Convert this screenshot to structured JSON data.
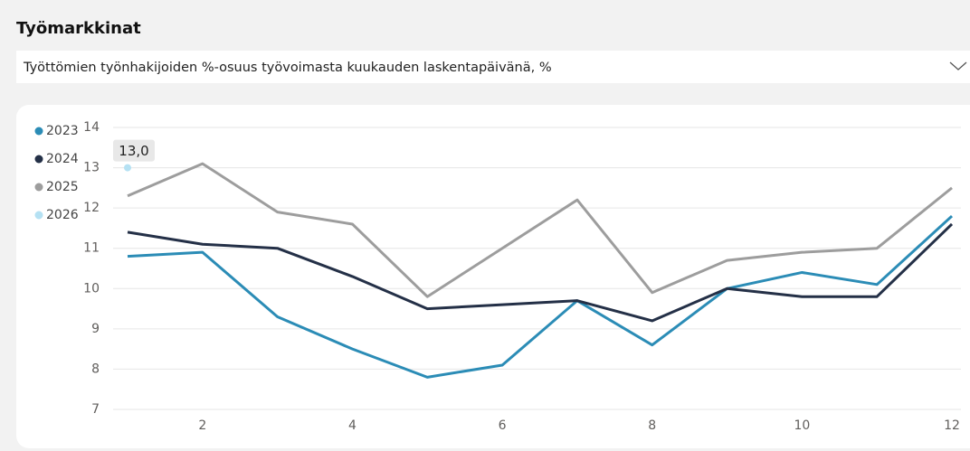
{
  "page": {
    "title": "Työmarkkinat",
    "dropdown": "Työttömien työnhakijoiden %-osuus työvoimasta kuukauden laskentapäivänä, %"
  },
  "chart_data": {
    "type": "line",
    "x": [
      1,
      2,
      3,
      4,
      5,
      6,
      7,
      8,
      9,
      10,
      11,
      12
    ],
    "series": [
      {
        "name": "2023",
        "color": "#2b8cb6",
        "values": [
          10.8,
          10.9,
          9.3,
          8.5,
          7.8,
          8.1,
          9.7,
          8.6,
          10.0,
          10.4,
          10.1,
          11.8
        ]
      },
      {
        "name": "2024",
        "color": "#243047",
        "values": [
          11.4,
          11.1,
          11.0,
          10.3,
          9.5,
          9.6,
          9.7,
          9.2,
          10.0,
          9.8,
          9.8,
          11.6
        ]
      },
      {
        "name": "2025",
        "color": "#9d9d9d",
        "values": [
          12.3,
          13.1,
          11.9,
          11.6,
          9.8,
          11.0,
          12.2,
          9.9,
          10.7,
          10.9,
          11.0,
          12.5
        ]
      },
      {
        "name": "2026",
        "color": "#b5e1f3",
        "values": [
          13.0,
          null,
          null,
          null,
          null,
          null,
          null,
          null,
          null,
          null,
          null,
          null
        ],
        "value_labels": [
          "13,0",
          null,
          null,
          null,
          null,
          null,
          null,
          null,
          null,
          null,
          null,
          null
        ]
      }
    ],
    "xlim": [
      1,
      12
    ],
    "xticks": [
      2,
      4,
      6,
      8,
      10,
      12
    ],
    "ylim": [
      7,
      14
    ],
    "yticks": [
      7,
      8,
      9,
      10,
      11,
      12,
      13,
      14
    ],
    "grid": true,
    "legend": "left"
  }
}
